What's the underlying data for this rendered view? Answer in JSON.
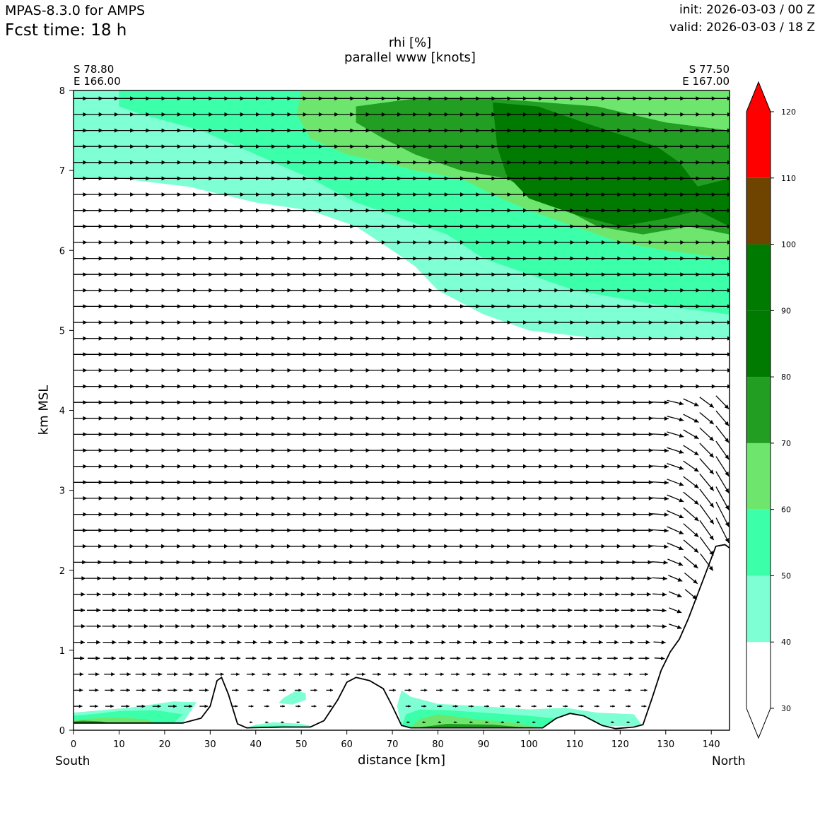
{
  "header": {
    "model": "MPAS-8.3.0 for AMPS",
    "fcst_time": "Fcst time:   18 h",
    "init": "init: 2026-03-03 / 00 Z",
    "valid": "valid: 2026-03-03 / 18 Z"
  },
  "chart_data": {
    "type": "heatmap",
    "title": "rhi [%]",
    "subtitle": "parallel www [knots]",
    "xlabel": "distance [km]",
    "ylabel": "km MSL",
    "xlim": [
      0,
      144
    ],
    "ylim": [
      0,
      8
    ],
    "xticks": [
      0,
      10,
      20,
      30,
      40,
      50,
      60,
      70,
      80,
      90,
      100,
      110,
      120,
      130,
      140
    ],
    "yticks": [
      0,
      1,
      2,
      3,
      4,
      5,
      6,
      7,
      8
    ],
    "left_end": {
      "lat": "S 78.80",
      "lon": "E 166.00",
      "direction": "South"
    },
    "right_end": {
      "lat": "S 77.50",
      "lon": "E 167.00",
      "direction": "North"
    },
    "colorbar": {
      "levels": [
        30,
        40,
        50,
        60,
        70,
        80,
        90,
        100,
        110,
        120
      ],
      "colors": [
        "#ffffff",
        "#7fffd4",
        "#3cffaa",
        "#6ee66e",
        "#229e22",
        "#007a00",
        "#007a00",
        "#6e4400",
        "#ff0000"
      ],
      "extend": "both",
      "extend_low_color": "#ffffff",
      "extend_high_color": "#ff0000"
    },
    "terrain_km": [
      [
        0,
        0.09
      ],
      [
        24,
        0.09
      ],
      [
        28,
        0.15
      ],
      [
        30,
        0.3
      ],
      [
        31.5,
        0.62
      ],
      [
        32.5,
        0.66
      ],
      [
        34,
        0.45
      ],
      [
        36,
        0.08
      ],
      [
        38,
        0.03
      ],
      [
        46,
        0.04
      ],
      [
        52,
        0.04
      ],
      [
        55,
        0.12
      ],
      [
        58,
        0.38
      ],
      [
        60,
        0.6
      ],
      [
        62,
        0.66
      ],
      [
        65,
        0.62
      ],
      [
        68,
        0.52
      ],
      [
        70,
        0.3
      ],
      [
        72,
        0.06
      ],
      [
        74,
        0.03
      ],
      [
        103,
        0.03
      ],
      [
        106,
        0.15
      ],
      [
        109,
        0.21
      ],
      [
        112,
        0.18
      ],
      [
        116,
        0.06
      ],
      [
        119,
        0.02
      ],
      [
        123,
        0.04
      ],
      [
        125,
        0.07
      ],
      [
        127,
        0.4
      ],
      [
        129,
        0.75
      ],
      [
        131,
        0.98
      ],
      [
        133,
        1.14
      ],
      [
        135,
        1.4
      ],
      [
        137,
        1.7
      ],
      [
        139,
        2.0
      ],
      [
        141,
        2.3
      ],
      [
        143,
        2.32
      ],
      [
        144,
        2.28
      ]
    ],
    "rh_regions": [
      {
        "level": 40,
        "polygon": [
          [
            0,
            8
          ],
          [
            144,
            8
          ],
          [
            144,
            4.9
          ],
          [
            130,
            4.9
          ],
          [
            115,
            4.9
          ],
          [
            100,
            5.0
          ],
          [
            90,
            5.2
          ],
          [
            80,
            5.5
          ],
          [
            75,
            5.8
          ],
          [
            70,
            6.0
          ],
          [
            62,
            6.3
          ],
          [
            52,
            6.5
          ],
          [
            40,
            6.6
          ],
          [
            25,
            6.8
          ],
          [
            10,
            6.9
          ],
          [
            0,
            6.9
          ]
        ]
      },
      {
        "level": 50,
        "polygon": [
          [
            10,
            8
          ],
          [
            144,
            8
          ],
          [
            144,
            5.2
          ],
          [
            130,
            5.3
          ],
          [
            120,
            5.4
          ],
          [
            110,
            5.5
          ],
          [
            100,
            5.7
          ],
          [
            90,
            5.9
          ],
          [
            82,
            6.2
          ],
          [
            72,
            6.4
          ],
          [
            62,
            6.6
          ],
          [
            52,
            6.9
          ],
          [
            40,
            7.2
          ],
          [
            28,
            7.5
          ],
          [
            15,
            7.7
          ],
          [
            10,
            7.8
          ]
        ]
      },
      {
        "level": 60,
        "polygon": [
          [
            50,
            8
          ],
          [
            144,
            8
          ],
          [
            144,
            5.9
          ],
          [
            130,
            6.0
          ],
          [
            120,
            6.1
          ],
          [
            110,
            6.3
          ],
          [
            100,
            6.5
          ],
          [
            92,
            6.7
          ],
          [
            85,
            6.9
          ],
          [
            75,
            7.0
          ],
          [
            68,
            7.1
          ],
          [
            60,
            7.2
          ],
          [
            52,
            7.4
          ],
          [
            49,
            7.7
          ]
        ]
      },
      {
        "level": 70,
        "polygon": [
          [
            62,
            7.8
          ],
          [
            75,
            7.9
          ],
          [
            92,
            7.9
          ],
          [
            115,
            7.8
          ],
          [
            130,
            7.6
          ],
          [
            144,
            7.5
          ],
          [
            144,
            6.2
          ],
          [
            135,
            6.3
          ],
          [
            125,
            6.2
          ],
          [
            115,
            6.3
          ],
          [
            105,
            6.6
          ],
          [
            95,
            6.9
          ],
          [
            85,
            7.0
          ],
          [
            75,
            7.2
          ],
          [
            68,
            7.4
          ],
          [
            62,
            7.6
          ]
        ]
      },
      {
        "level": 80,
        "polygon": [
          [
            92,
            7.85
          ],
          [
            102,
            7.8
          ],
          [
            112,
            7.6
          ],
          [
            128,
            7.3
          ],
          [
            133,
            7.1
          ],
          [
            137,
            6.8
          ],
          [
            144,
            6.9
          ],
          [
            144,
            6.3
          ],
          [
            137,
            6.5
          ],
          [
            130,
            6.4
          ],
          [
            120,
            6.3
          ],
          [
            110,
            6.45
          ],
          [
            100,
            6.65
          ],
          [
            95,
            6.95
          ],
          [
            93,
            7.3
          ]
        ]
      },
      {
        "level": 40,
        "polygon": [
          [
            0,
            0.09
          ],
          [
            24,
            0.09
          ],
          [
            27,
            0.35
          ],
          [
            22,
            0.36
          ],
          [
            12,
            0.28
          ],
          [
            4,
            0.24
          ],
          [
            0,
            0.22
          ]
        ]
      },
      {
        "level": 50,
        "polygon": [
          [
            0,
            0.09
          ],
          [
            22,
            0.09
          ],
          [
            24,
            0.2
          ],
          [
            18,
            0.25
          ],
          [
            10,
            0.24
          ],
          [
            4,
            0.2
          ],
          [
            0,
            0.18
          ]
        ]
      },
      {
        "level": 60,
        "polygon": [
          [
            0,
            0.09
          ],
          [
            18,
            0.09
          ],
          [
            16,
            0.14
          ],
          [
            8,
            0.16
          ],
          [
            2,
            0.14
          ],
          [
            0,
            0.12
          ]
        ]
      },
      {
        "level": 70,
        "polygon": [
          [
            0,
            0.09
          ],
          [
            8,
            0.09
          ],
          [
            6,
            0.11
          ],
          [
            2,
            0.12
          ],
          [
            0,
            0.11
          ]
        ]
      },
      {
        "level": 40,
        "polygon": [
          [
            46,
            0.4
          ],
          [
            49,
            0.5
          ],
          [
            51,
            0.46
          ],
          [
            51,
            0.38
          ],
          [
            48,
            0.32
          ],
          [
            45,
            0.34
          ]
        ]
      },
      {
        "level": 40,
        "polygon": [
          [
            72,
            0.05
          ],
          [
            125,
            0.05
          ],
          [
            123,
            0.2
          ],
          [
            115,
            0.22
          ],
          [
            108,
            0.28
          ],
          [
            100,
            0.26
          ],
          [
            90,
            0.3
          ],
          [
            80,
            0.33
          ],
          [
            74,
            0.42
          ],
          [
            72,
            0.5
          ],
          [
            71,
            0.3
          ]
        ]
      },
      {
        "level": 50,
        "polygon": [
          [
            72,
            0.04
          ],
          [
            118,
            0.04
          ],
          [
            110,
            0.12
          ],
          [
            100,
            0.18
          ],
          [
            90,
            0.22
          ],
          [
            82,
            0.25
          ],
          [
            76,
            0.26
          ],
          [
            73,
            0.2
          ]
        ]
      },
      {
        "level": 60,
        "polygon": [
          [
            74,
            0.04
          ],
          [
            102,
            0.04
          ],
          [
            96,
            0.1
          ],
          [
            88,
            0.14
          ],
          [
            80,
            0.2
          ],
          [
            76,
            0.14
          ]
        ]
      },
      {
        "level": 70,
        "polygon": [
          [
            75,
            0.03
          ],
          [
            100,
            0.03
          ],
          [
            92,
            0.07
          ],
          [
            82,
            0.08
          ]
        ]
      },
      {
        "level": 40,
        "polygon": [
          [
            38,
            0.03
          ],
          [
            54,
            0.03
          ],
          [
            50,
            0.08
          ],
          [
            44,
            0.1
          ],
          [
            40,
            0.07
          ]
        ]
      },
      {
        "level": 50,
        "polygon": [
          [
            38,
            0.03
          ],
          [
            52,
            0.03
          ],
          [
            46,
            0.06
          ],
          [
            40,
            0.05
          ]
        ]
      }
    ],
    "wind_vectors_note": "parallel wind arrows on a regular grid: strong left-to-right flow aloft, weak near the surface, steep downward vectors near x=135-142 km between 2 and 4 km"
  }
}
